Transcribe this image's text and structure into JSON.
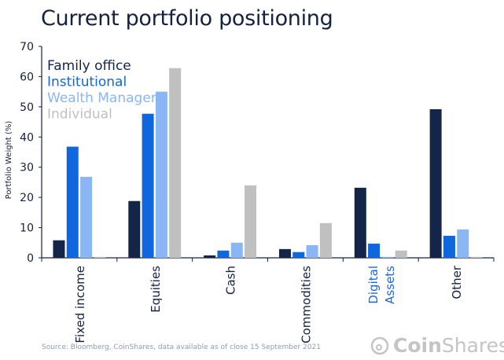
{
  "title": "Current portfolio positioning",
  "source": "Source: Bloomberg, CoinShares, data available as of close 15 September 2021",
  "logo": "CoinShares",
  "chart_data": {
    "type": "bar",
    "title": "Current portfolio positioning",
    "ylabel": "Portfolio Weight (%)",
    "xlabel": "",
    "ylim": [
      0,
      70
    ],
    "yticks": [
      0,
      10,
      20,
      30,
      40,
      50,
      60,
      70
    ],
    "grid": false,
    "legend": "top-left",
    "categories": [
      "Fixed income",
      "Equities",
      "Cash",
      "Commodities",
      "Digital Assets",
      "Other"
    ],
    "category_colors": [
      "#14213f",
      "#14213f",
      "#14213f",
      "#14213f",
      "#1a66e0",
      "#14213f"
    ],
    "series": [
      {
        "name": "Family office",
        "color": "#14254a",
        "values": [
          5.8,
          18.8,
          0.8,
          2.9,
          23.2,
          49.2
        ]
      },
      {
        "name": "Institutional",
        "color": "#1066dc",
        "values": [
          36.8,
          47.7,
          2.4,
          1.9,
          4.7,
          7.3
        ]
      },
      {
        "name": "Wealth Manager",
        "color": "#8ab6f6",
        "values": [
          26.8,
          55.0,
          5.0,
          4.2,
          0.3,
          9.4
        ]
      },
      {
        "name": "Individual",
        "color": "#c0c0c0",
        "values": [
          0.3,
          62.8,
          24.0,
          11.5,
          2.4,
          0.3
        ]
      }
    ]
  }
}
